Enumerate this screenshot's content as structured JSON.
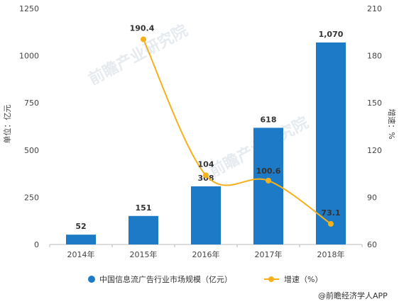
{
  "chart_data": {
    "type": "bar",
    "categories": [
      "2014年",
      "2015年",
      "2016年",
      "2017年",
      "2018年"
    ],
    "series": [
      {
        "name": "中国信息流广告行业市场规模（亿元）",
        "type": "bar",
        "axis": "left",
        "color": "#1d7ac7",
        "values": [
          52,
          151,
          308,
          618,
          1070
        ],
        "labels": [
          "52",
          "151",
          "308",
          "618",
          "1,070"
        ]
      },
      {
        "name": "增速（%）",
        "type": "line",
        "axis": "right",
        "color": "#f5b01c",
        "values": [
          null,
          190.4,
          104,
          100.6,
          73.1
        ],
        "labels": [
          "",
          "190.4",
          "104",
          "100.6",
          "73.1"
        ]
      }
    ],
    "ylabel": "单位：亿元",
    "y2label": "增速：%",
    "ylim": [
      0,
      1250
    ],
    "yticks": [
      0,
      250,
      500,
      750,
      1000,
      1250
    ],
    "y2lim": [
      60,
      210
    ],
    "y2ticks": [
      60,
      90,
      120,
      150,
      180,
      210
    ],
    "grid": false,
    "legend_position": "bottom"
  },
  "watermark": "前瞻产业研究院",
  "source": "@前瞻经济学人APP"
}
